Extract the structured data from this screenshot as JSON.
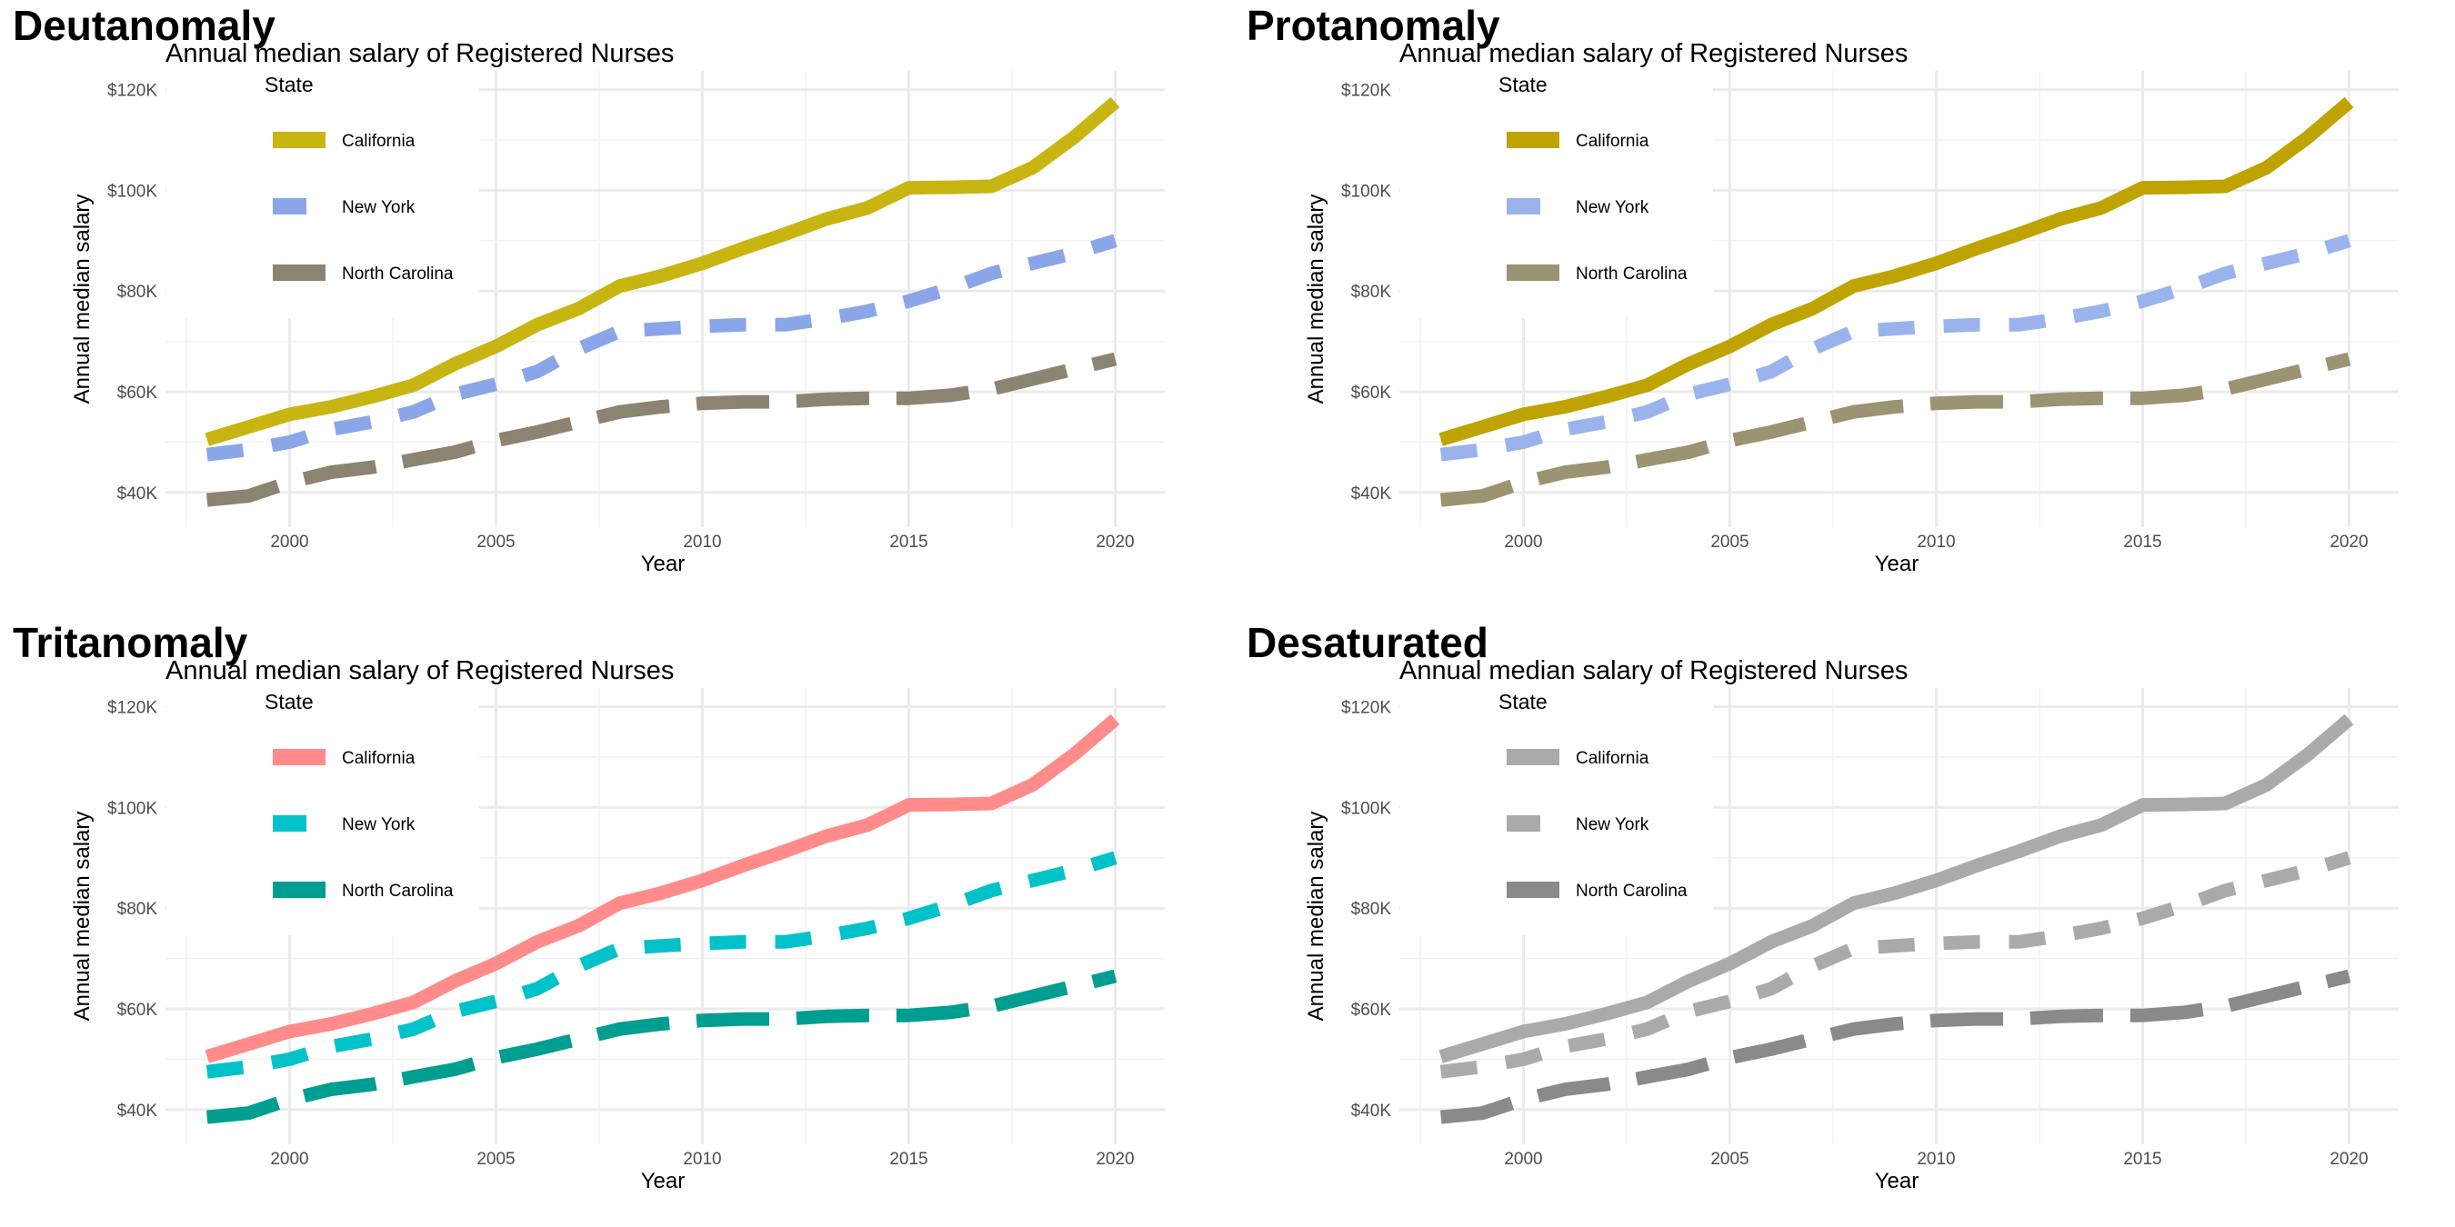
{
  "chart_data": [
    {
      "type": "line",
      "panel_title": "Deutanomaly",
      "colors": {
        "California": "#c9b512",
        "New York": "#8aa6e8",
        "North Carolina": "#8a8471"
      }
    },
    {
      "type": "line",
      "panel_title": "Protanomaly",
      "colors": {
        "California": "#bfa300",
        "New York": "#9bb3ec",
        "North Carolina": "#9b9372"
      }
    },
    {
      "type": "line",
      "panel_title": "Tritanomaly",
      "colors": {
        "California": "#ff8c8a",
        "New York": "#00c2c8",
        "North Carolina": "#009e90"
      }
    },
    {
      "type": "line",
      "panel_title": "Desaturated",
      "colors": {
        "California": "#aaaaaa",
        "New York": "#aaaaaa",
        "North Carolina": "#8a8a8a"
      }
    }
  ],
  "shared": {
    "title": "Annual median salary of Registered Nurses",
    "xlabel": "Year",
    "ylabel": "Annual median salary",
    "legend_title": "State",
    "legend_placement": "top-left inside",
    "grid": true,
    "xlim": [
      1997.5,
      2021
    ],
    "ylim": [
      36000,
      122000
    ],
    "x_ticks": [
      2000,
      2005,
      2010,
      2015,
      2020
    ],
    "x_tick_labels": [
      "2000",
      "2005",
      "2010",
      "2015",
      "2020"
    ],
    "y_ticks": [
      40000,
      60000,
      80000,
      100000,
      120000
    ],
    "y_tick_labels": [
      "$40K",
      "$60K",
      "$80K",
      "$100K",
      "$120K"
    ],
    "x": [
      1998,
      1999,
      2000,
      2001,
      2002,
      2003,
      2004,
      2005,
      2006,
      2007,
      2008,
      2009,
      2010,
      2011,
      2012,
      2013,
      2014,
      2015,
      2016,
      2017,
      2018,
      2019,
      2020
    ],
    "series": [
      {
        "name": "California",
        "linetype": "solid",
        "values": [
          50500,
          53000,
          55500,
          57000,
          59000,
          61300,
          65500,
          69000,
          73300,
          76500,
          81000,
          83000,
          85500,
          88500,
          91300,
          94300,
          96500,
          100500,
          100600,
          100800,
          104500,
          110500,
          117500
        ]
      },
      {
        "name": "New York",
        "linetype": "dashed",
        "values": [
          47500,
          48500,
          50000,
          52500,
          54000,
          56000,
          59500,
          61500,
          64000,
          68500,
          72000,
          72500,
          73000,
          73300,
          73300,
          74500,
          76000,
          78000,
          80500,
          83500,
          85500,
          87500,
          90000
        ]
      },
      {
        "name": "North Carolina",
        "linetype": "longdash",
        "values": [
          38500,
          39300,
          42000,
          44000,
          45000,
          46500,
          48000,
          50300,
          52000,
          54000,
          56000,
          57000,
          57700,
          58000,
          58000,
          58500,
          58700,
          58700,
          59300,
          60500,
          62500,
          64500,
          66500
        ]
      }
    ]
  }
}
